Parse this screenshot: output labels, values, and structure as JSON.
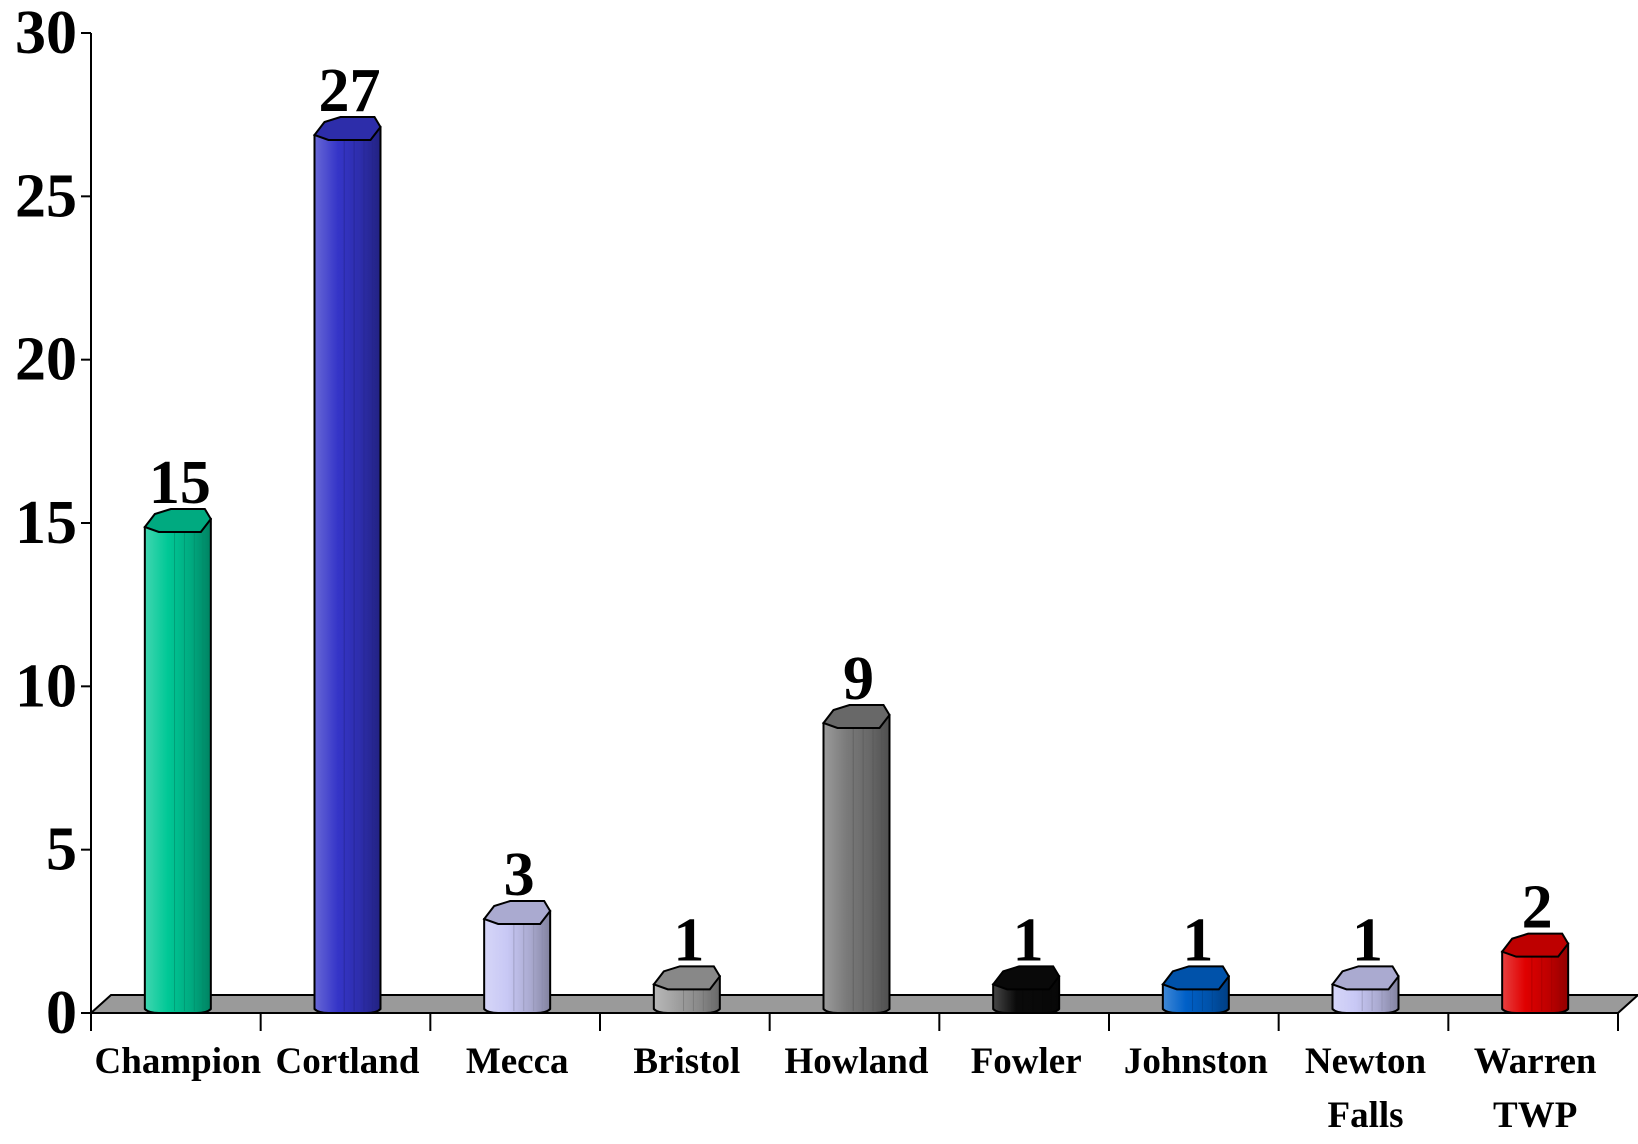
{
  "chart_data": {
    "type": "bar",
    "title": "",
    "xlabel": "",
    "ylabel": "",
    "ylim": [
      0,
      30
    ],
    "yticks": [
      "0",
      "5",
      "10",
      "15",
      "20",
      "25",
      "30"
    ],
    "categories": [
      [
        "Champion"
      ],
      [
        "Cortland"
      ],
      [
        "Mecca"
      ],
      [
        "Bristol"
      ],
      [
        "Howland"
      ],
      [
        "Fowler"
      ],
      [
        "Johnston"
      ],
      [
        "Newton",
        "Falls"
      ],
      [
        "Warren",
        "TWP"
      ]
    ],
    "values": [
      15,
      27,
      3,
      1,
      9,
      1,
      1,
      1,
      2
    ],
    "data_labels": [
      "15",
      "27",
      "3",
      "1",
      "9",
      "1",
      "1",
      "1",
      "2"
    ],
    "colors": [
      "#00c896",
      "#3535c8",
      "#c8c8f5",
      "#a0a0a0",
      "#7a7a7a",
      "#0a0a0a",
      "#0060c8",
      "#c8c8f5",
      "#e00000"
    ],
    "floor_color": "#9a9a9a",
    "grid": false,
    "legend": "none"
  }
}
